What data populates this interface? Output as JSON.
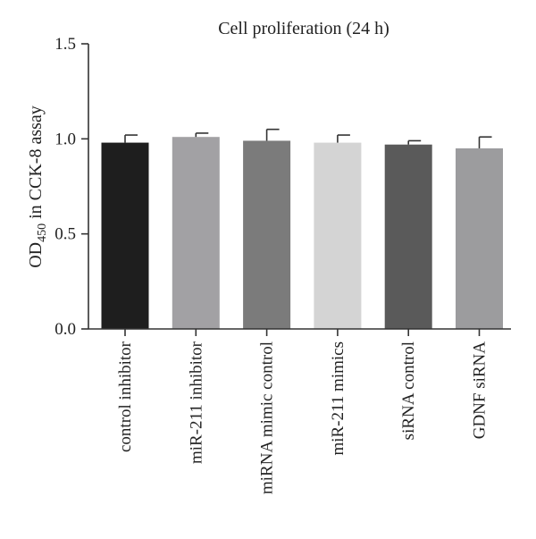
{
  "chart_data": {
    "type": "bar",
    "title": "Cell proliferation (24 h)",
    "ylabel": {
      "prefix": "OD",
      "subscript": "450",
      "suffix": " in CCK-8 assay"
    },
    "xlabel": "",
    "ylim": [
      0,
      1.5
    ],
    "yticks": [
      "0.0",
      "0.5",
      "1.0",
      "1.5"
    ],
    "categories": [
      "control inhibitor",
      "miR-211 inhibitor",
      "miRNA mimic control",
      "miR-211 mimics",
      "siRNA control",
      "GDNF siRNA"
    ],
    "values": [
      0.98,
      1.01,
      0.99,
      0.98,
      0.97,
      0.95
    ],
    "errors": [
      0.04,
      0.02,
      0.06,
      0.04,
      0.02,
      0.06
    ],
    "colors": [
      "#1e1e1e",
      "#a2a1a4",
      "#7b7b7b",
      "#d4d4d4",
      "#5a5a5a",
      "#9c9c9e"
    ],
    "grid": false,
    "legend": "none"
  }
}
